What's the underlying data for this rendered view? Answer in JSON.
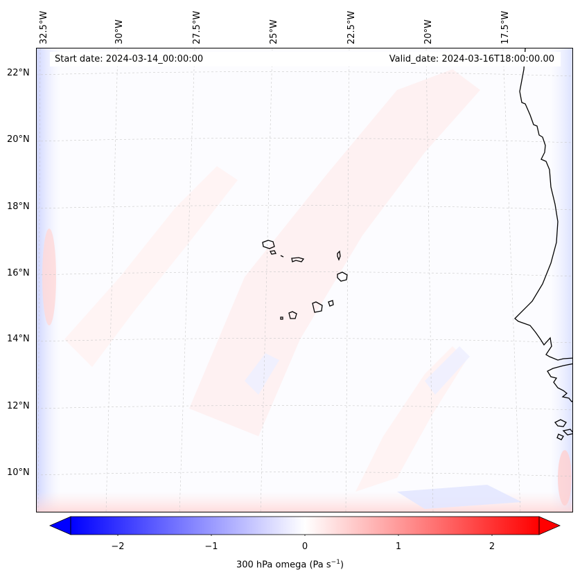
{
  "map": {
    "variable_label": "300 hPa omega (Pa s",
    "unit_exponent": "−1",
    "unit_close": ")",
    "start_date": "Start date: 2024-03-14_00:00:00",
    "valid_date": "Valid_date: 2024-03-16T18:00:00.00",
    "longitude_labels": [
      "32.5°W",
      "30°W",
      "27.5°W",
      "25°W",
      "22.5°W",
      "20°W",
      "17.5°W"
    ],
    "latitude_labels": [
      "22°N",
      "20°N",
      "18°N",
      "16°N",
      "14°N",
      "12°N",
      "10°N"
    ],
    "lon_range": [
      -33,
      -15.5
    ],
    "lat_range": [
      8.8,
      22.8
    ],
    "colormap": "bwr",
    "min_color": "#0000ff",
    "mid_color": "#ffffff",
    "max_color": "#ff0000",
    "coast_color": "#000000",
    "grid_color": "#bfbfbf"
  },
  "colorbar": {
    "ticks": [
      "−2",
      "−1",
      "0",
      "1",
      "2"
    ],
    "tick_values": [
      -2,
      -1,
      0,
      1,
      2
    ],
    "range": [
      -2.5,
      2.5
    ],
    "extend": "both"
  }
}
